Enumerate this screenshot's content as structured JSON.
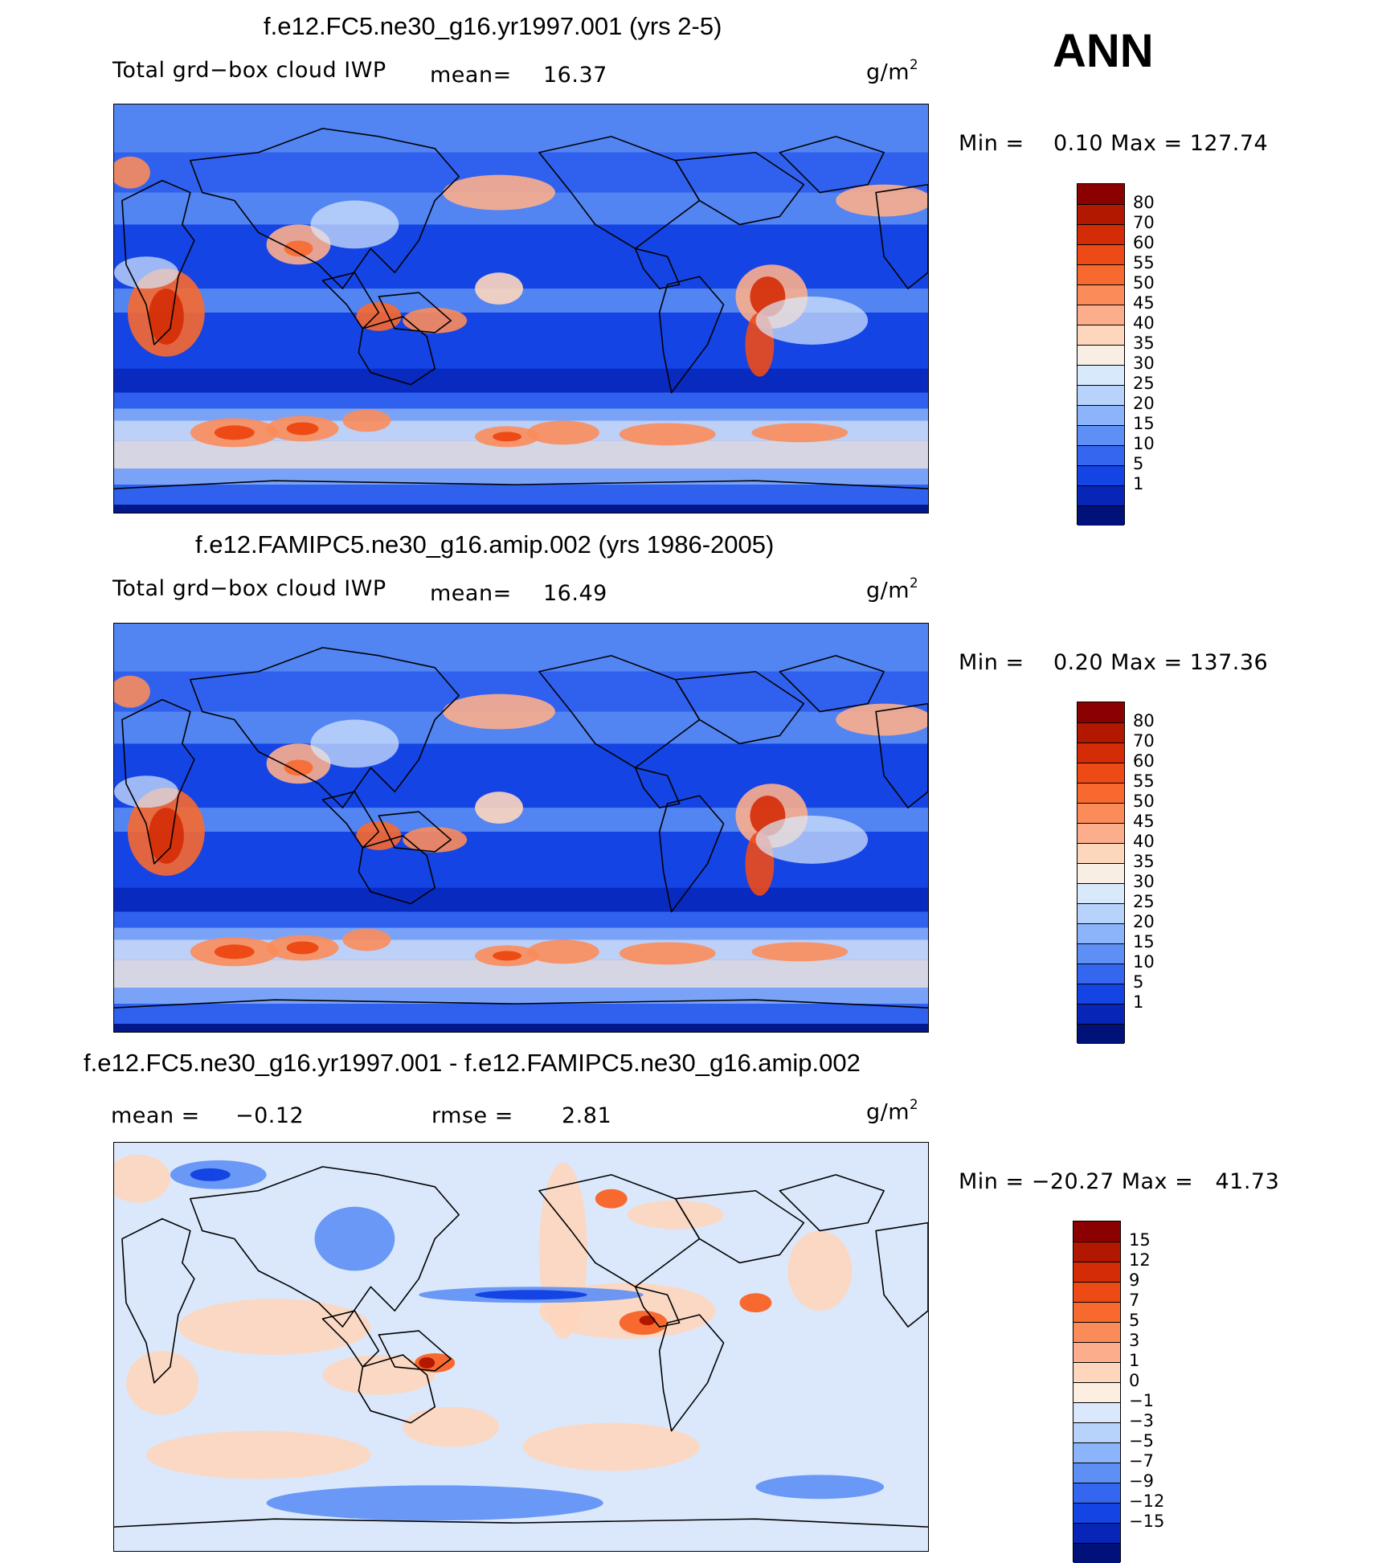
{
  "season": "ANN",
  "panels": [
    {
      "title": "f.e12.FC5.ne30_g16.yr1997.001 (yrs 2-5)",
      "left_label": "Total grd−box cloud IWP",
      "stat1_label": "mean=",
      "stat1_value": "16.37",
      "stat2_label": "",
      "stat2_value": "",
      "units": "g/m",
      "units_exp": "2",
      "minmax": "Min =    0.10 Max = 127.74",
      "colorbar": {
        "levels": [
          "80",
          "70",
          "60",
          "55",
          "50",
          "45",
          "40",
          "35",
          "30",
          "25",
          "20",
          "15",
          "10",
          "5",
          "1"
        ],
        "colors": [
          "#8b0000",
          "#b21800",
          "#d42c06",
          "#ee4a16",
          "#f8692f",
          "#fb8c5a",
          "#fcae8c",
          "#fdd6bc",
          "#f8eee4",
          "#d9e9fc",
          "#b7d2fb",
          "#8cb4fa",
          "#5d8ff5",
          "#3566f0",
          "#1444e4",
          "#0726b8",
          "#00117a"
        ]
      },
      "map_field": "mean"
    },
    {
      "title": "f.e12.FAMIPC5.ne30_g16.amip.002 (yrs 1986-2005)",
      "left_label": "Total grd−box cloud IWP",
      "stat1_label": "mean=",
      "stat1_value": "16.49",
      "stat2_label": "",
      "stat2_value": "",
      "units": "g/m",
      "units_exp": "2",
      "minmax": "Min =    0.20 Max = 137.36",
      "colorbar": {
        "levels": [
          "80",
          "70",
          "60",
          "55",
          "50",
          "45",
          "40",
          "35",
          "30",
          "25",
          "20",
          "15",
          "10",
          "5",
          "1"
        ],
        "colors": [
          "#8b0000",
          "#b21800",
          "#d42c06",
          "#ee4a16",
          "#f8692f",
          "#fb8c5a",
          "#fcae8c",
          "#fdd6bc",
          "#f8eee4",
          "#d9e9fc",
          "#b7d2fb",
          "#8cb4fa",
          "#5d8ff5",
          "#3566f0",
          "#1444e4",
          "#0726b8",
          "#00117a"
        ]
      },
      "map_field": "mean"
    },
    {
      "title": "f.e12.FC5.ne30_g16.yr1997.001 - f.e12.FAMIPC5.ne30_g16.amip.002",
      "left_label": "",
      "stat1_label": "mean =",
      "stat1_value": "−0.12",
      "stat2_label": "rmse =",
      "stat2_value": "2.81",
      "units": "g/m",
      "units_exp": "2",
      "minmax": "Min = −20.27 Max =   41.73",
      "colorbar": {
        "levels": [
          "15",
          "12",
          "9",
          "7",
          "5",
          "3",
          "1",
          "0",
          "−1",
          "−3",
          "−5",
          "−7",
          "−9",
          "−12",
          "−15"
        ],
        "colors": [
          "#8b0000",
          "#b21800",
          "#d42c06",
          "#ee4a16",
          "#f8692f",
          "#fb8c5a",
          "#fcae8c",
          "#fdd6bc",
          "#fdeee2",
          "#dbe8fb",
          "#b7d2fb",
          "#8cb4fa",
          "#5d8ff5",
          "#3566f0",
          "#1444e4",
          "#0726b8",
          "#00117a"
        ]
      },
      "map_field": "diff"
    }
  ]
}
